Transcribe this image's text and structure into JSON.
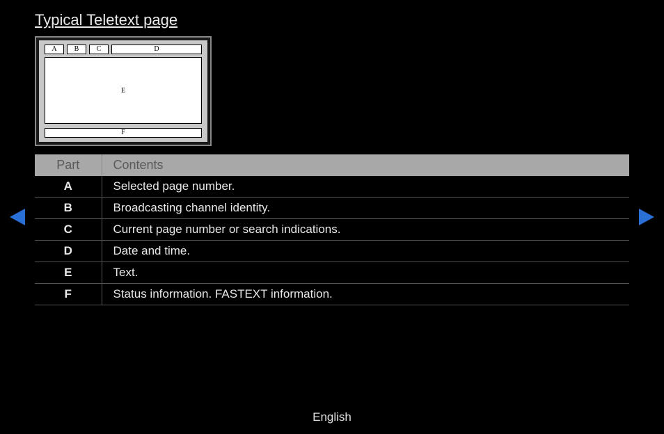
{
  "title": "Typical Teletext page",
  "diagram": {
    "A": "A",
    "B": "B",
    "C": "C",
    "D": "D",
    "E": "E",
    "F": "F"
  },
  "table": {
    "headers": {
      "part": "Part",
      "contents": "Contents"
    },
    "rows": [
      {
        "part": "A",
        "contents": "Selected page number."
      },
      {
        "part": "B",
        "contents": "Broadcasting channel identity."
      },
      {
        "part": "C",
        "contents": "Current page number or search indications."
      },
      {
        "part": "D",
        "contents": "Date and time."
      },
      {
        "part": "E",
        "contents": "Text."
      },
      {
        "part": "F",
        "contents": "Status information. FASTEXT information."
      }
    ]
  },
  "footer": "English",
  "colors": {
    "arrow": "#2a6fd6"
  }
}
